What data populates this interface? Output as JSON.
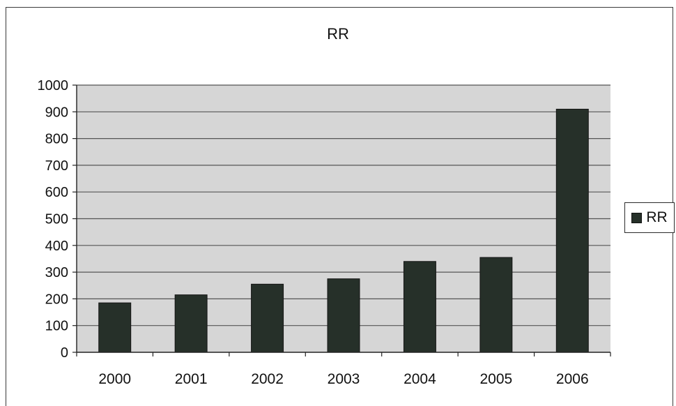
{
  "chart_data": {
    "type": "bar",
    "title": "RR",
    "xlabel": "",
    "ylabel": "",
    "categories": [
      "2000",
      "2001",
      "2002",
      "2003",
      "2004",
      "2005",
      "2006"
    ],
    "series": [
      {
        "name": "RR",
        "values": [
          185,
          215,
          255,
          275,
          340,
          355,
          910
        ],
        "color": "#263029"
      }
    ],
    "ylim": [
      0,
      1000
    ],
    "yticks": [
      0,
      100,
      200,
      300,
      400,
      500,
      600,
      700,
      800,
      900,
      1000
    ],
    "grid": true,
    "legend": "right",
    "plot_background": "#d6d6d6"
  }
}
